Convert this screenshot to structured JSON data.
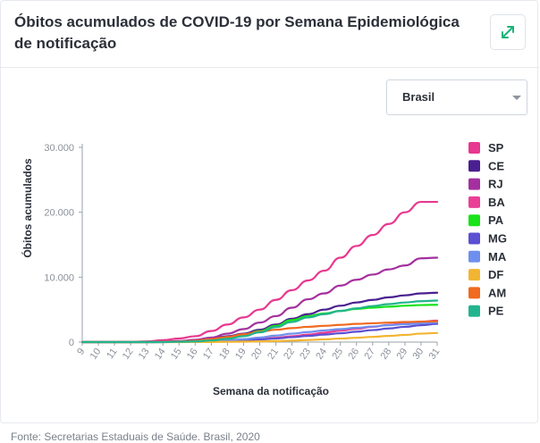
{
  "header": {
    "title": "Óbitos acumulados de COVID-19 por Semana Epidemiológica de notificação",
    "expand_icon": "expand-arrows-icon"
  },
  "filter": {
    "selected": "Brasil"
  },
  "source": "Fonte: Secretarias Estaduais de Saúde. Brasil, 2020",
  "chart_data": {
    "type": "line",
    "xlabel": "Semana da notificação",
    "ylabel": "Óbitos acumulados",
    "ylim": [
      0,
      30000
    ],
    "yticks": [
      0,
      10000,
      20000,
      30000
    ],
    "ytick_labels": [
      "0",
      "10.000",
      "20.000",
      "30.000"
    ],
    "x": [
      9,
      10,
      11,
      12,
      13,
      14,
      15,
      16,
      17,
      18,
      19,
      20,
      21,
      22,
      23,
      24,
      25,
      26,
      27,
      28,
      29,
      30,
      31
    ],
    "legend_position": "right",
    "series": [
      {
        "name": "SP",
        "color": "#e8388f",
        "values": [
          0,
          0,
          10,
          30,
          100,
          300,
          550,
          900,
          1700,
          2700,
          3800,
          5000,
          6500,
          8000,
          9500,
          11000,
          13000,
          14800,
          16500,
          18200,
          20000,
          21600,
          21600
        ]
      },
      {
        "name": "CE",
        "color": "#4a1f8f",
        "values": [
          0,
          0,
          0,
          0,
          10,
          30,
          100,
          300,
          550,
          900,
          1300,
          1900,
          2700,
          3600,
          4300,
          5000,
          5600,
          6100,
          6500,
          6900,
          7200,
          7500,
          7600
        ]
      },
      {
        "name": "RJ",
        "color": "#a4309f",
        "values": [
          0,
          0,
          0,
          0,
          20,
          60,
          150,
          350,
          700,
          1300,
          2000,
          3000,
          4000,
          5300,
          6600,
          7500,
          8700,
          9600,
          10400,
          11200,
          11800,
          12900,
          13000
        ]
      },
      {
        "name": "BA",
        "color": "#ea3f95",
        "values": [
          0,
          0,
          0,
          0,
          0,
          10,
          30,
          60,
          120,
          200,
          300,
          450,
          650,
          900,
          1150,
          1450,
          1750,
          2050,
          2350,
          2650,
          2900,
          3150,
          3300
        ]
      },
      {
        "name": "PA",
        "color": "#19e31a",
        "values": [
          0,
          0,
          0,
          0,
          0,
          10,
          50,
          150,
          350,
          700,
          1100,
          1700,
          2500,
          3400,
          4000,
          4400,
          4800,
          5100,
          5300,
          5450,
          5600,
          5700,
          5750
        ]
      },
      {
        "name": "MG",
        "color": "#5b4fd2",
        "values": [
          0,
          0,
          0,
          0,
          0,
          5,
          20,
          50,
          100,
          180,
          280,
          400,
          550,
          750,
          950,
          1150,
          1350,
          1600,
          1850,
          2100,
          2350,
          2600,
          2800
        ]
      },
      {
        "name": "MA",
        "color": "#6f8fee",
        "values": [
          0,
          0,
          0,
          0,
          0,
          5,
          20,
          50,
          120,
          250,
          450,
          700,
          1000,
          1300,
          1550,
          1800,
          2000,
          2200,
          2400,
          2600,
          2750,
          2900,
          3000
        ]
      },
      {
        "name": "DF",
        "color": "#f2b531",
        "values": [
          0,
          0,
          0,
          0,
          0,
          0,
          5,
          10,
          20,
          40,
          70,
          100,
          150,
          230,
          320,
          420,
          540,
          660,
          800,
          950,
          1100,
          1300,
          1400
        ]
      },
      {
        "name": "AM",
        "color": "#f06a1f",
        "values": [
          0,
          0,
          0,
          0,
          0,
          20,
          80,
          200,
          450,
          800,
          1200,
          1600,
          1900,
          2150,
          2350,
          2500,
          2650,
          2800,
          2900,
          3000,
          3100,
          3150,
          3200
        ]
      },
      {
        "name": "PE",
        "color": "#22b58d",
        "values": [
          0,
          0,
          0,
          0,
          0,
          10,
          40,
          100,
          250,
          500,
          900,
          1500,
          2300,
          3100,
          3800,
          4300,
          4800,
          5200,
          5550,
          5850,
          6100,
          6300,
          6400
        ]
      }
    ]
  }
}
